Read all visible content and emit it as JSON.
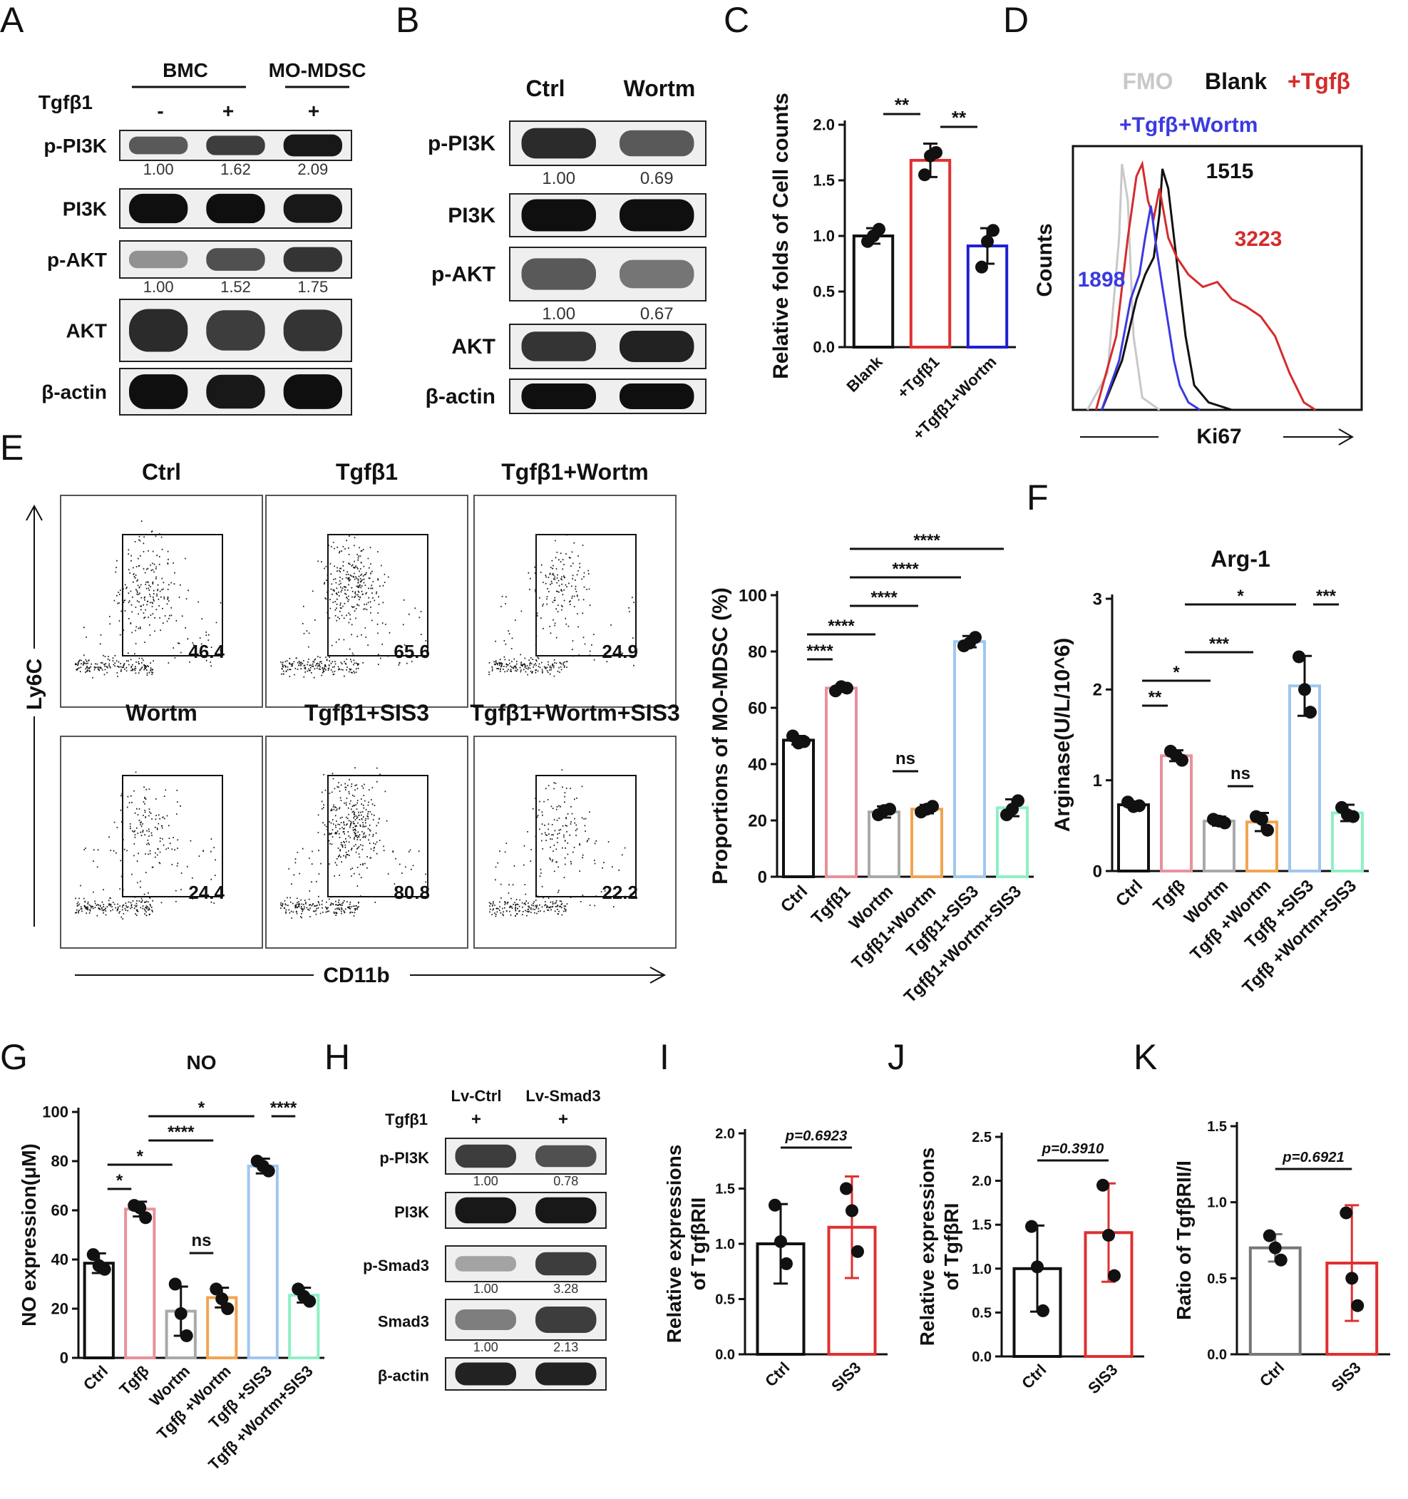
{
  "panel_letters": [
    "A",
    "B",
    "C",
    "D",
    "E",
    "F",
    "G",
    "H",
    "I",
    "J",
    "K"
  ],
  "panel_A": {
    "groups": [
      "BMC",
      "MO-MDSC"
    ],
    "treatment_label": "Tgfβ1",
    "treatment_signs": [
      "-",
      "+",
      "+"
    ],
    "bands": [
      {
        "label": "p-PI3K",
        "quant": [
          "1.00",
          "1.62",
          "2.09"
        ],
        "intensity": [
          0.6,
          0.75,
          0.95
        ]
      },
      {
        "label": "PI3K",
        "quant": null,
        "intensity": [
          1.0,
          1.0,
          0.95
        ]
      },
      {
        "label": "p-AKT",
        "quant": [
          "1.00",
          "1.52",
          "1.75"
        ],
        "intensity": [
          0.3,
          0.65,
          0.8
        ]
      },
      {
        "label": "AKT",
        "quant": null,
        "intensity": [
          0.85,
          0.75,
          0.8
        ]
      },
      {
        "label": "β-actin",
        "quant": null,
        "intensity": [
          1.0,
          0.95,
          1.0
        ]
      }
    ]
  },
  "panel_B": {
    "lanes": [
      "Ctrl",
      "Wortm"
    ],
    "bands": [
      {
        "label": "p-PI3K",
        "quant": [
          "1.00",
          "0.69"
        ],
        "intensity": [
          0.85,
          0.6
        ]
      },
      {
        "label": "PI3K",
        "quant": null,
        "intensity": [
          1.0,
          1.0
        ]
      },
      {
        "label": "p-AKT",
        "quant": [
          "1.00",
          "0.67"
        ],
        "intensity": [
          0.6,
          0.45
        ]
      },
      {
        "label": "AKT",
        "quant": null,
        "intensity": [
          0.8,
          0.9
        ]
      },
      {
        "label": "β-actin",
        "quant": null,
        "intensity": [
          1.0,
          1.0
        ]
      }
    ]
  },
  "panel_D": {
    "legend": [
      {
        "label": "FMO",
        "color": "#c8c8c8"
      },
      {
        "label": "Blank",
        "color": "#111111"
      },
      {
        "label": "+Tgfβ",
        "color": "#d62b2b"
      },
      {
        "label": "+Tgfβ+Wortm",
        "color": "#3a3ae0"
      }
    ],
    "values": [
      {
        "label": "1515",
        "color": "#111111"
      },
      {
        "label": "3223",
        "color": "#d62b2b"
      },
      {
        "label": "1898",
        "color": "#3a3ae0"
      }
    ],
    "xlabel": "Ki67",
    "ylabel": "Counts"
  },
  "panel_E": {
    "xlabel": "CD11b",
    "ylabel": "Ly6C",
    "plots": [
      {
        "title": "Ctrl",
        "percent": "46.4"
      },
      {
        "title": "Tgfβ1",
        "percent": "65.6"
      },
      {
        "title": "Tgfβ1+Wortm",
        "percent": "24.9"
      },
      {
        "title": "Wortm",
        "percent": "24.4"
      },
      {
        "title": "Tgfβ1+SIS3",
        "percent": "80.8"
      },
      {
        "title": "Tgfβ1+Wortm+SIS3",
        "percent": "22.2"
      }
    ]
  },
  "panel_H": {
    "lanes": [
      "Lv-Ctrl",
      "Lv-Smad3"
    ],
    "treatment_label": "Tgfβ1",
    "treatment_signs": [
      "+",
      "+"
    ],
    "bands": [
      {
        "label": "p-PI3K",
        "quant": [
          "1.00",
          "0.78"
        ],
        "intensity": [
          0.75,
          0.65
        ]
      },
      {
        "label": "PI3K",
        "quant": null,
        "intensity": [
          0.95,
          0.95
        ]
      },
      {
        "label": "p-Smad3",
        "quant": [
          "1.00",
          "3.28"
        ],
        "intensity": [
          0.2,
          0.75
        ]
      },
      {
        "label": "Smad3",
        "quant": [
          "1.00",
          "2.13"
        ],
        "intensity": [
          0.4,
          0.75
        ]
      },
      {
        "label": "β-actin",
        "quant": null,
        "intensity": [
          0.9,
          0.9
        ]
      }
    ]
  },
  "chart_data": [
    {
      "id": "C",
      "type": "bar",
      "title": "",
      "ylabel": "Relative folds of Cell counts",
      "categories": [
        "Blank",
        "+Tgfβ1",
        "+Tgfβ1+Wortm"
      ],
      "values": [
        1.0,
        1.68,
        0.91
      ],
      "errors": [
        0.07,
        0.15,
        0.16
      ],
      "points": [
        [
          0.95,
          1.06,
          1.0
        ],
        [
          1.55,
          1.75,
          1.72
        ],
        [
          0.72,
          1.05,
          0.95
        ]
      ],
      "colors": [
        "#111111",
        "#e03030",
        "#2020d0"
      ],
      "ylim": [
        0,
        2.0
      ],
      "yticks": [
        "0.0",
        "0.5",
        "1.0",
        "1.5",
        "2.0"
      ],
      "significance": [
        {
          "from": 0,
          "to": 1,
          "label": "**"
        },
        {
          "from": 1,
          "to": 2,
          "label": "**"
        }
      ]
    },
    {
      "id": "E_bar",
      "type": "bar",
      "title": "",
      "ylabel": "Proportions of MO-MDSC (%)",
      "categories": [
        "Ctrl",
        "Tgfβ1",
        "Wortm",
        "Tgfβ1+Wortm",
        "Tgfβ1+SIS3",
        "Tgfβ1+Wortm+SIS3"
      ],
      "values": [
        48.5,
        67.0,
        23.0,
        24.0,
        83.5,
        24.5
      ],
      "errors": [
        1.5,
        0.8,
        2.0,
        1.5,
        2.0,
        3.0
      ],
      "points": [
        [
          50,
          48,
          47.5
        ],
        [
          66,
          67,
          67.5
        ],
        [
          22,
          24,
          23.5
        ],
        [
          23,
          25,
          24
        ],
        [
          82,
          85,
          83
        ],
        [
          22,
          27,
          24
        ]
      ],
      "colors": [
        "#111111",
        "#e8919b",
        "#a9a9a9",
        "#f0a552",
        "#9fc7ee",
        "#8ff0c4"
      ],
      "ylim": [
        0,
        100
      ],
      "yticks": [
        "0",
        "20",
        "40",
        "60",
        "80",
        "100"
      ],
      "significance": [
        {
          "from": 0,
          "to": 1,
          "label": "****"
        },
        {
          "from": 0,
          "to": 2,
          "label": "****"
        },
        {
          "from": 2,
          "to": 3,
          "label": "ns"
        },
        {
          "from": 1,
          "to": 3,
          "label": "****"
        },
        {
          "from": 1,
          "to": 4,
          "label": "****"
        },
        {
          "from": 1,
          "to": 5,
          "label": "****"
        }
      ]
    },
    {
      "id": "F",
      "type": "bar",
      "title": "Arg-1",
      "ylabel": "Arginase(U/L/10^6)",
      "categories": [
        "Ctrl",
        "Tgfβ",
        "Wortm",
        "Tgfβ +Wortm",
        "Tgfβ +SIS3",
        "Tgfβ +Wortm+SIS3"
      ],
      "values": [
        0.73,
        1.27,
        0.55,
        0.54,
        2.04,
        0.64
      ],
      "errors": [
        0.03,
        0.06,
        0.05,
        0.1,
        0.33,
        0.09
      ],
      "points": [
        [
          0.76,
          0.72,
          0.71
        ],
        [
          1.32,
          1.22,
          1.27
        ],
        [
          0.57,
          0.53,
          0.55
        ],
        [
          0.6,
          0.45,
          0.57
        ],
        [
          2.36,
          1.75,
          2.0
        ],
        [
          0.7,
          0.6,
          0.62
        ]
      ],
      "colors": [
        "#111111",
        "#e8919b",
        "#a9a9a9",
        "#f0a552",
        "#9fc7ee",
        "#8ff0c4"
      ],
      "ylim": [
        0,
        3
      ],
      "yticks": [
        "0",
        "1",
        "2",
        "3"
      ],
      "significance": [
        {
          "from": 0,
          "to": 1,
          "label": "**"
        },
        {
          "from": 0,
          "to": 2,
          "label": "*"
        },
        {
          "from": 2,
          "to": 3,
          "label": "ns"
        },
        {
          "from": 1,
          "to": 3,
          "label": "***"
        },
        {
          "from": 1,
          "to": 4,
          "label": "*"
        },
        {
          "from": 4,
          "to": 5,
          "label": "***"
        }
      ]
    },
    {
      "id": "G",
      "type": "bar",
      "title": "NO",
      "ylabel": "NO expression(μM)",
      "categories": [
        "Ctrl",
        "Tgfβ",
        "Wortm",
        "Tgfβ +Wortm",
        "Tgfβ +SIS3",
        "Tgfβ +Wortm+SIS3"
      ],
      "values": [
        38.5,
        60.5,
        19.0,
        24.5,
        78.0,
        25.5
      ],
      "errors": [
        4,
        3,
        10,
        4,
        3,
        3
      ],
      "points": [
        [
          42,
          36,
          37.5
        ],
        [
          62,
          57,
          61
        ],
        [
          30,
          9,
          18
        ],
        [
          28,
          20,
          24
        ],
        [
          80,
          76,
          78
        ],
        [
          28,
          23,
          25
        ]
      ],
      "colors": [
        "#111111",
        "#e8919b",
        "#a9a9a9",
        "#f0a552",
        "#9fc7ee",
        "#8ff0c4"
      ],
      "ylim": [
        0,
        100
      ],
      "yticks": [
        "0",
        "20",
        "40",
        "60",
        "80",
        "100"
      ],
      "significance": [
        {
          "from": 0,
          "to": 1,
          "label": "*"
        },
        {
          "from": 0,
          "to": 2,
          "label": "*"
        },
        {
          "from": 2,
          "to": 3,
          "label": "ns"
        },
        {
          "from": 1,
          "to": 3,
          "label": "****"
        },
        {
          "from": 1,
          "to": 4,
          "label": "*"
        },
        {
          "from": 4,
          "to": 5,
          "label": "****"
        }
      ]
    },
    {
      "id": "I",
      "type": "bar",
      "title": "",
      "ylabel": [
        "Relative expressions",
        "of TgfβRII"
      ],
      "categories": [
        "Ctrl",
        "SIS3"
      ],
      "values": [
        1.0,
        1.15
      ],
      "errors": [
        0.36,
        0.46
      ],
      "points": [
        [
          1.35,
          0.82,
          1.02
        ],
        [
          1.5,
          0.93,
          1.3
        ]
      ],
      "colors": [
        "#111111",
        "#e03030"
      ],
      "ylim": [
        0,
        2.0
      ],
      "yticks": [
        "0.0",
        "0.5",
        "1.0",
        "1.5",
        "2.0"
      ],
      "significance": [
        {
          "from": 0,
          "to": 1,
          "label": "p=0.6923"
        }
      ]
    },
    {
      "id": "J",
      "type": "bar",
      "title": "",
      "ylabel": [
        "Relative expressions",
        "of TgfβRI"
      ],
      "categories": [
        "Ctrl",
        "SIS3"
      ],
      "values": [
        1.0,
        1.41
      ],
      "errors": [
        0.49,
        0.56
      ],
      "points": [
        [
          1.48,
          0.52,
          1.02
        ],
        [
          1.95,
          0.92,
          1.38
        ]
      ],
      "colors": [
        "#111111",
        "#e03030"
      ],
      "ylim": [
        0,
        2.5
      ],
      "yticks": [
        "0.0",
        "0.5",
        "1.0",
        "1.5",
        "2.0",
        "2.5"
      ],
      "significance": [
        {
          "from": 0,
          "to": 1,
          "label": "p=0.3910"
        }
      ]
    },
    {
      "id": "K",
      "type": "bar",
      "title": "",
      "ylabel": "Ratio of TgfβRII/I",
      "categories": [
        "Ctrl",
        "SIS3"
      ],
      "values": [
        0.7,
        0.6
      ],
      "errors": [
        0.09,
        0.38
      ],
      "points": [
        [
          0.78,
          0.62,
          0.7
        ],
        [
          0.93,
          0.32,
          0.5
        ]
      ],
      "colors": [
        "#777777",
        "#e03030"
      ],
      "ylim": [
        0,
        1.5
      ],
      "yticks": [
        "0.0",
        "0.5",
        "1.0",
        "1.5"
      ],
      "significance": [
        {
          "from": 0,
          "to": 1,
          "label": "p=0.6921"
        }
      ]
    }
  ]
}
